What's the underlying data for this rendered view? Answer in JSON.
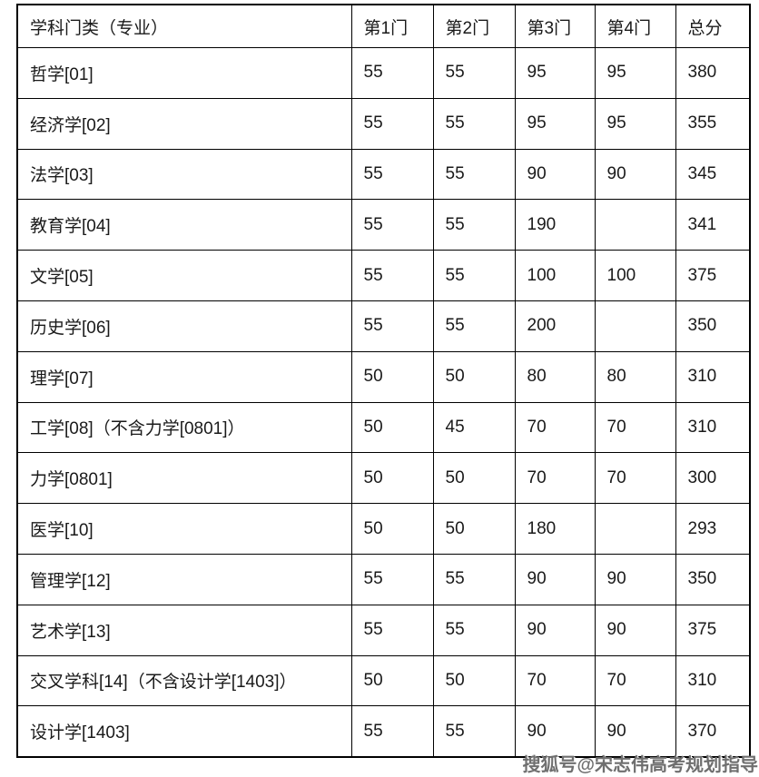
{
  "page": {
    "background_color": "#ffffff",
    "border_color": "#000000",
    "text_color": "#1a1a1a"
  },
  "table": {
    "headers": [
      "学科门类（专业）",
      "第1门",
      "第2门",
      "第3门",
      "第4门",
      "总分"
    ],
    "rows": [
      {
        "cells": [
          "哲学[01]",
          "55",
          "55",
          "95",
          "95",
          "380"
        ]
      },
      {
        "cells": [
          "经济学[02]",
          "55",
          "55",
          "95",
          "95",
          "355"
        ]
      },
      {
        "cells": [
          "法学[03]",
          "55",
          "55",
          "90",
          "90",
          "345"
        ]
      },
      {
        "cells": [
          "教育学[04]",
          "55",
          "55",
          "190",
          "",
          "341"
        ]
      },
      {
        "cells": [
          "文学[05]",
          "55",
          "55",
          "100",
          "100",
          "375"
        ]
      },
      {
        "cells": [
          "历史学[06]",
          "55",
          "55",
          "200",
          "",
          "350"
        ]
      },
      {
        "cells": [
          "理学[07]",
          "50",
          "50",
          "80",
          "80",
          "310"
        ]
      },
      {
        "cells": [
          "工学[08]（不含力学[0801]）",
          "50",
          "45",
          "70",
          "70",
          "310"
        ]
      },
      {
        "cells": [
          "力学[0801]",
          "50",
          "50",
          "70",
          "70",
          "300"
        ]
      },
      {
        "cells": [
          "医学[10]",
          "50",
          "50",
          "180",
          "",
          "293"
        ]
      },
      {
        "cells": [
          "管理学[12]",
          "55",
          "55",
          "90",
          "90",
          "350"
        ]
      },
      {
        "cells": [
          "艺术学[13]",
          "55",
          "55",
          "90",
          "90",
          "375"
        ]
      },
      {
        "cells": [
          "交叉学科[14]（不含设计学[1403]）",
          "50",
          "50",
          "70",
          "70",
          "310"
        ]
      },
      {
        "cells": [
          "设计学[1403]",
          "55",
          "55",
          "90",
          "90",
          "370"
        ]
      }
    ]
  },
  "watermark": {
    "text": "搜狐号@宋志伟高考规划指导",
    "color": "#6f6f6f"
  }
}
